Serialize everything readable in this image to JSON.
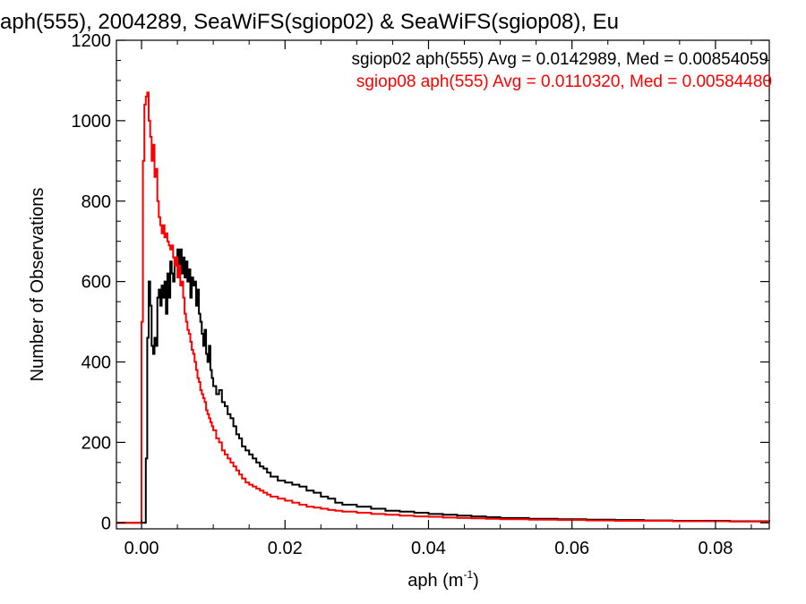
{
  "chart_data": {
    "type": "line",
    "title": "aph(555), 2004289, SeaWiFS(sgiop02) & SeaWiFS(sgiop08), Eu",
    "xlabel": "aph (m",
    "xlabel_sup": "-1",
    "xlabel_tail": ")",
    "ylabel": "Number of Observations",
    "xlim": [
      -0.0035,
      0.0875
    ],
    "ylim": [
      -15,
      1200
    ],
    "xticks": [
      0.0,
      0.02,
      0.04,
      0.06,
      0.08
    ],
    "xtick_labels": [
      "0.00",
      "0.02",
      "0.04",
      "0.06",
      "0.08"
    ],
    "yticks": [
      0,
      200,
      400,
      600,
      800,
      1000,
      1200
    ],
    "ytick_labels": [
      "0",
      "200",
      "400",
      "600",
      "800",
      "1000",
      "1200"
    ],
    "grid": false,
    "legend_position": "top-right",
    "annotations": [
      {
        "text": "sgiop02 aph(555) Avg = 0.0142989, Med = 0.00854059",
        "color": "#000000"
      },
      {
        "text": "sgiop08 aph(555) Avg = 0.0110320, Med = 0.00584480",
        "color": "#ff0000"
      }
    ],
    "series": [
      {
        "color": "#000000",
        "points": [
          [
            -0.0035,
            0
          ],
          [
            0.0004,
            0
          ],
          [
            0.0006,
            160
          ],
          [
            0.0008,
            460
          ],
          [
            0.001,
            600
          ],
          [
            0.0012,
            540
          ],
          [
            0.0014,
            440
          ],
          [
            0.0016,
            420
          ],
          [
            0.0018,
            460
          ],
          [
            0.002,
            440
          ],
          [
            0.0022,
            560
          ],
          [
            0.0024,
            580
          ],
          [
            0.0026,
            540
          ],
          [
            0.0028,
            590
          ],
          [
            0.003,
            560
          ],
          [
            0.0032,
            600
          ],
          [
            0.0034,
            520
          ],
          [
            0.0036,
            620
          ],
          [
            0.0038,
            560
          ],
          [
            0.004,
            650
          ],
          [
            0.0042,
            620
          ],
          [
            0.0044,
            600
          ],
          [
            0.0046,
            660
          ],
          [
            0.0048,
            640
          ],
          [
            0.005,
            680
          ],
          [
            0.0052,
            640
          ],
          [
            0.0054,
            680
          ],
          [
            0.0056,
            620
          ],
          [
            0.0058,
            660
          ],
          [
            0.006,
            610
          ],
          [
            0.0062,
            650
          ],
          [
            0.0064,
            600
          ],
          [
            0.0066,
            630
          ],
          [
            0.0068,
            560
          ],
          [
            0.007,
            610
          ],
          [
            0.0072,
            590
          ],
          [
            0.0074,
            600
          ],
          [
            0.0076,
            540
          ],
          [
            0.0078,
            580
          ],
          [
            0.008,
            520
          ],
          [
            0.0082,
            500
          ],
          [
            0.0084,
            470
          ],
          [
            0.0086,
            440
          ],
          [
            0.0088,
            480
          ],
          [
            0.009,
            420
          ],
          [
            0.0092,
            400
          ],
          [
            0.0094,
            440
          ],
          [
            0.0096,
            380
          ],
          [
            0.0098,
            360
          ],
          [
            0.01,
            340
          ],
          [
            0.0104,
            320
          ],
          [
            0.0108,
            330
          ],
          [
            0.0112,
            300
          ],
          [
            0.0116,
            290
          ],
          [
            0.012,
            270
          ],
          [
            0.0124,
            260
          ],
          [
            0.0128,
            240
          ],
          [
            0.0132,
            220
          ],
          [
            0.0136,
            210
          ],
          [
            0.014,
            190
          ],
          [
            0.0145,
            180
          ],
          [
            0.015,
            170
          ],
          [
            0.0155,
            160
          ],
          [
            0.016,
            150
          ],
          [
            0.0165,
            140
          ],
          [
            0.017,
            135
          ],
          [
            0.0175,
            125
          ],
          [
            0.018,
            115
          ],
          [
            0.019,
            105
          ],
          [
            0.02,
            100
          ],
          [
            0.021,
            95
          ],
          [
            0.022,
            90
          ],
          [
            0.023,
            80
          ],
          [
            0.024,
            75
          ],
          [
            0.025,
            65
          ],
          [
            0.026,
            60
          ],
          [
            0.027,
            50
          ],
          [
            0.028,
            45
          ],
          [
            0.03,
            40
          ],
          [
            0.032,
            35
          ],
          [
            0.034,
            30
          ],
          [
            0.036,
            28
          ],
          [
            0.038,
            25
          ],
          [
            0.04,
            22
          ],
          [
            0.042,
            20
          ],
          [
            0.044,
            18
          ],
          [
            0.046,
            16
          ],
          [
            0.048,
            14
          ],
          [
            0.05,
            12
          ],
          [
            0.054,
            10
          ],
          [
            0.058,
            9
          ],
          [
            0.062,
            8
          ],
          [
            0.066,
            7
          ],
          [
            0.07,
            6
          ],
          [
            0.074,
            5
          ],
          [
            0.078,
            5
          ],
          [
            0.082,
            4
          ],
          [
            0.0875,
            3
          ]
        ]
      },
      {
        "color": "#ff0000",
        "points": [
          [
            -0.0035,
            0
          ],
          [
            -0.0002,
            0
          ],
          [
            0.0,
            500
          ],
          [
            0.0002,
            900
          ],
          [
            0.0004,
            1040
          ],
          [
            0.0006,
            1060
          ],
          [
            0.0008,
            1070
          ],
          [
            0.001,
            1000
          ],
          [
            0.0012,
            960
          ],
          [
            0.0014,
            900
          ],
          [
            0.0016,
            940
          ],
          [
            0.0018,
            860
          ],
          [
            0.002,
            880
          ],
          [
            0.0022,
            800
          ],
          [
            0.0024,
            760
          ],
          [
            0.0026,
            740
          ],
          [
            0.0028,
            720
          ],
          [
            0.003,
            740
          ],
          [
            0.0032,
            710
          ],
          [
            0.0034,
            720
          ],
          [
            0.0036,
            700
          ],
          [
            0.0038,
            690
          ],
          [
            0.004,
            680
          ],
          [
            0.0042,
            690
          ],
          [
            0.0044,
            660
          ],
          [
            0.0046,
            640
          ],
          [
            0.0048,
            660
          ],
          [
            0.005,
            610
          ],
          [
            0.0052,
            640
          ],
          [
            0.0054,
            590
          ],
          [
            0.0056,
            600
          ],
          [
            0.0058,
            560
          ],
          [
            0.006,
            520
          ],
          [
            0.0062,
            500
          ],
          [
            0.0064,
            480
          ],
          [
            0.0066,
            470
          ],
          [
            0.0068,
            450
          ],
          [
            0.007,
            430
          ],
          [
            0.0072,
            420
          ],
          [
            0.0074,
            400
          ],
          [
            0.0076,
            380
          ],
          [
            0.0078,
            360
          ],
          [
            0.008,
            350
          ],
          [
            0.0082,
            330
          ],
          [
            0.0084,
            320
          ],
          [
            0.0086,
            310
          ],
          [
            0.0088,
            300
          ],
          [
            0.009,
            280
          ],
          [
            0.0092,
            270
          ],
          [
            0.0094,
            260
          ],
          [
            0.0096,
            250
          ],
          [
            0.0098,
            240
          ],
          [
            0.01,
            230
          ],
          [
            0.0104,
            210
          ],
          [
            0.0108,
            200
          ],
          [
            0.0112,
            180
          ],
          [
            0.0116,
            170
          ],
          [
            0.012,
            160
          ],
          [
            0.0124,
            150
          ],
          [
            0.0128,
            140
          ],
          [
            0.0132,
            130
          ],
          [
            0.0136,
            120
          ],
          [
            0.014,
            110
          ],
          [
            0.0145,
            100
          ],
          [
            0.015,
            95
          ],
          [
            0.0155,
            90
          ],
          [
            0.016,
            85
          ],
          [
            0.0165,
            80
          ],
          [
            0.017,
            75
          ],
          [
            0.0175,
            70
          ],
          [
            0.018,
            65
          ],
          [
            0.019,
            60
          ],
          [
            0.02,
            55
          ],
          [
            0.021,
            50
          ],
          [
            0.022,
            45
          ],
          [
            0.023,
            40
          ],
          [
            0.024,
            38
          ],
          [
            0.025,
            35
          ],
          [
            0.026,
            32
          ],
          [
            0.027,
            30
          ],
          [
            0.028,
            28
          ],
          [
            0.03,
            25
          ],
          [
            0.032,
            22
          ],
          [
            0.034,
            20
          ],
          [
            0.036,
            18
          ],
          [
            0.038,
            16
          ],
          [
            0.04,
            15
          ],
          [
            0.042,
            13
          ],
          [
            0.044,
            12
          ],
          [
            0.046,
            11
          ],
          [
            0.048,
            10
          ],
          [
            0.05,
            9
          ],
          [
            0.054,
            8
          ],
          [
            0.058,
            7
          ],
          [
            0.062,
            6
          ],
          [
            0.066,
            5
          ],
          [
            0.07,
            5
          ],
          [
            0.074,
            4
          ],
          [
            0.078,
            4
          ],
          [
            0.082,
            3
          ],
          [
            0.0875,
            3
          ]
        ]
      }
    ]
  }
}
